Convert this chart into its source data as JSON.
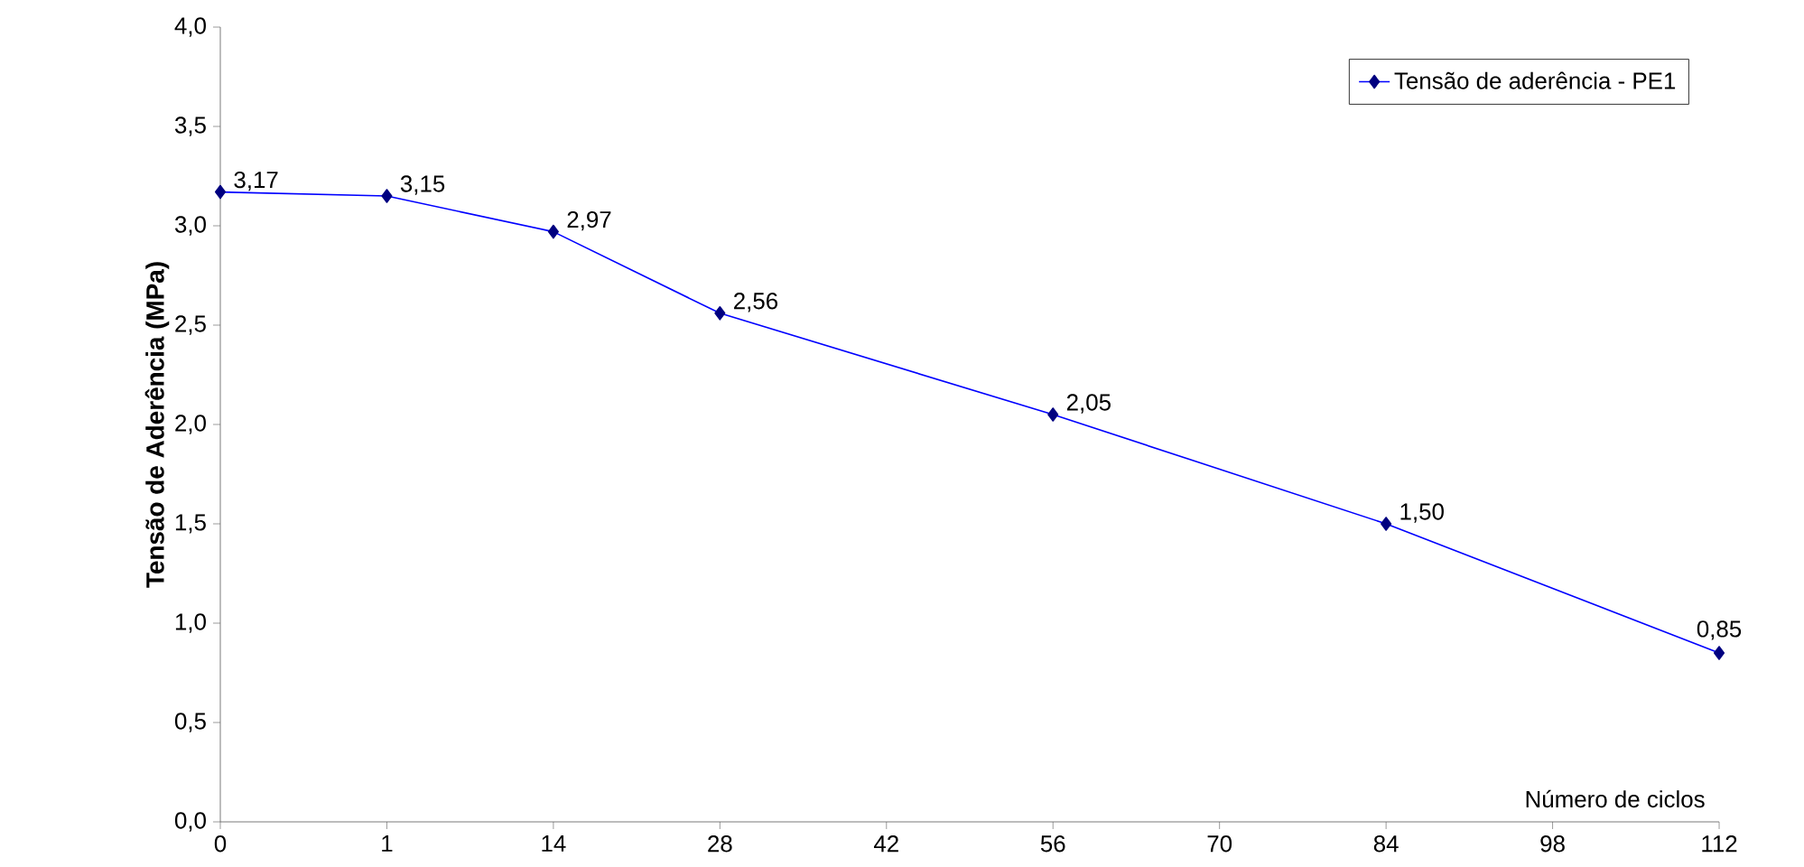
{
  "chart_data": {
    "type": "line",
    "ylabel": "Tensão de Aderência (MPa)",
    "categories": [
      "0",
      "1",
      "14",
      "28",
      "42",
      "56",
      "70",
      "84",
      "98",
      "112"
    ],
    "series": [
      {
        "name": "Tensão de aderência - PE1",
        "color": "#000080",
        "values": [
          3.17,
          3.15,
          2.97,
          2.56,
          null,
          2.05,
          null,
          1.5,
          null,
          0.85
        ],
        "value_labels": [
          "3,17",
          "3,15",
          "2,97",
          "2,56",
          null,
          "2,05",
          null,
          "1,50",
          null,
          "0,85"
        ]
      }
    ],
    "ylim": [
      0,
      4
    ],
    "yticks": [
      {
        "value": 0,
        "label": "0,0"
      },
      {
        "value": 0.5,
        "label": "0,5"
      },
      {
        "value": 1,
        "label": "1,0"
      },
      {
        "value": 1.5,
        "label": "1,5"
      },
      {
        "value": 2,
        "label": "2,0"
      },
      {
        "value": 2.5,
        "label": "2,5"
      },
      {
        "value": 3,
        "label": "3,0"
      },
      {
        "value": 3.5,
        "label": "3,5"
      },
      {
        "value": 4,
        "label": "4,0"
      }
    ],
    "annotations": [
      "Número de ciclos"
    ],
    "legend": "top right",
    "grid": false,
    "marker": "diamond",
    "line_style": "solid"
  }
}
